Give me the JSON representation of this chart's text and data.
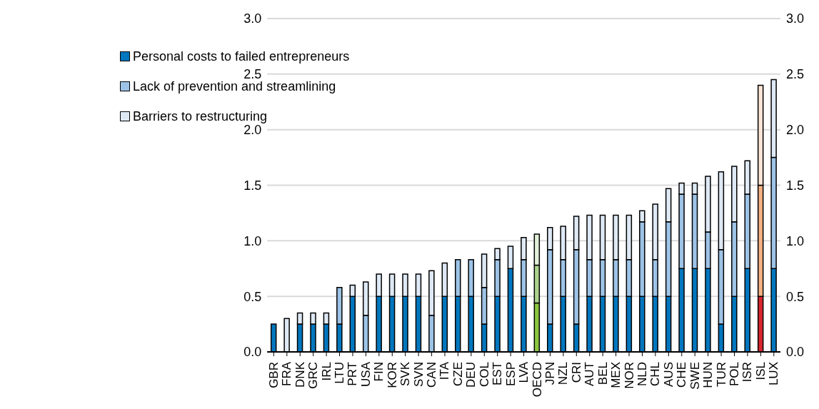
{
  "chart_data": {
    "type": "bar",
    "stacked": true,
    "categories": [
      "GBR",
      "FRA",
      "DNK",
      "GRC",
      "IRL",
      "LTU",
      "PRT",
      "USA",
      "FIN",
      "KOR",
      "SVK",
      "SVN",
      "CAN",
      "ITA",
      "CZE",
      "DEU",
      "COL",
      "EST",
      "ESP",
      "LVA",
      "OECD",
      "JPN",
      "NZL",
      "CRI",
      "AUT",
      "BEL",
      "MEX",
      "NOR",
      "NLD",
      "CHL",
      "AUS",
      "CHE",
      "SWE",
      "HUN",
      "TUR",
      "POL",
      "ISR",
      "ISL",
      "LUX"
    ],
    "series": [
      {
        "name": "Personal costs to failed entrepreneurs",
        "color": "#0077be",
        "colors": [
          "#0077be",
          "#0077be",
          "#0077be",
          "#0077be",
          "#0077be",
          "#0077be",
          "#0077be",
          "#0077be",
          "#0077be",
          "#0077be",
          "#0077be",
          "#0077be",
          "#0077be",
          "#0077be",
          "#0077be",
          "#0077be",
          "#0077be",
          "#0077be",
          "#0077be",
          "#0077be",
          "#8cc63f",
          "#0077be",
          "#0077be",
          "#0077be",
          "#0077be",
          "#0077be",
          "#0077be",
          "#0077be",
          "#0077be",
          "#0077be",
          "#0077be",
          "#0077be",
          "#0077be",
          "#0077be",
          "#0077be",
          "#0077be",
          "#0077be",
          "#d9272e",
          "#0077be"
        ],
        "values": [
          0.25,
          0,
          0.25,
          0.25,
          0.25,
          0.25,
          0.5,
          0,
          0.5,
          0.5,
          0.5,
          0.5,
          0,
          0.5,
          0.5,
          0.5,
          0.25,
          0.5,
          0.75,
          0.5,
          0.44,
          0.25,
          0.5,
          0.25,
          0.5,
          0.5,
          0.5,
          0.5,
          0.5,
          0.5,
          0.5,
          0.75,
          0.75,
          0.75,
          0.25,
          0.5,
          0.75,
          0.5,
          0.75
        ]
      },
      {
        "name": "Lack of prevention and streamlining",
        "color": "#9dc3e6",
        "colors": [
          "#9dc3e6",
          "#9dc3e6",
          "#9dc3e6",
          "#9dc3e6",
          "#9dc3e6",
          "#9dc3e6",
          "#9dc3e6",
          "#9dc3e6",
          "#9dc3e6",
          "#9dc3e6",
          "#9dc3e6",
          "#9dc3e6",
          "#9dc3e6",
          "#9dc3e6",
          "#9dc3e6",
          "#9dc3e6",
          "#9dc3e6",
          "#9dc3e6",
          "#9dc3e6",
          "#9dc3e6",
          "#acd38e",
          "#9dc3e6",
          "#9dc3e6",
          "#9dc3e6",
          "#9dc3e6",
          "#9dc3e6",
          "#9dc3e6",
          "#9dc3e6",
          "#9dc3e6",
          "#9dc3e6",
          "#9dc3e6",
          "#9dc3e6",
          "#9dc3e6",
          "#9dc3e6",
          "#9dc3e6",
          "#9dc3e6",
          "#9dc3e6",
          "#f4b183",
          "#9dc3e6"
        ],
        "values": [
          0,
          0,
          0,
          0,
          0,
          0.33,
          0,
          0.33,
          0,
          0,
          0,
          0,
          0.33,
          0,
          0.33,
          0.33,
          0.33,
          0.33,
          0,
          0.33,
          0.34,
          0.67,
          0.33,
          0.67,
          0.33,
          0.33,
          0.33,
          0.33,
          0.67,
          0.33,
          0.67,
          0.67,
          0.67,
          0.33,
          0.67,
          0.67,
          0.67,
          1.0,
          1.0
        ]
      },
      {
        "name": "Barriers to restructuring",
        "color": "#dee9f5",
        "colors": [
          "#dee9f5",
          "#dee9f5",
          "#dee9f5",
          "#dee9f5",
          "#dee9f5",
          "#dee9f5",
          "#dee9f5",
          "#dee9f5",
          "#dee9f5",
          "#dee9f5",
          "#dee9f5",
          "#dee9f5",
          "#dee9f5",
          "#dee9f5",
          "#dee9f5",
          "#dee9f5",
          "#dee9f5",
          "#dee9f5",
          "#dee9f5",
          "#dee9f5",
          "#e3f0d9",
          "#dee9f5",
          "#dee9f5",
          "#dee9f5",
          "#dee9f5",
          "#dee9f5",
          "#dee9f5",
          "#dee9f5",
          "#dee9f5",
          "#dee9f5",
          "#dee9f5",
          "#dee9f5",
          "#dee9f5",
          "#dee9f5",
          "#dee9f5",
          "#dee9f5",
          "#dee9f5",
          "#fbe5d6",
          "#dee9f5"
        ],
        "values": [
          0,
          0.3,
          0.1,
          0.1,
          0.1,
          0,
          0.1,
          0.3,
          0.2,
          0.2,
          0.2,
          0.2,
          0.4,
          0.3,
          0,
          0,
          0.3,
          0.1,
          0.2,
          0.2,
          0.28,
          0.2,
          0.3,
          0.3,
          0.4,
          0.4,
          0.4,
          0.4,
          0.1,
          0.5,
          0.3,
          0.1,
          0.1,
          0.5,
          0.7,
          0.5,
          0.3,
          0.9,
          0.7
        ]
      }
    ],
    "ylim": [
      0,
      3
    ],
    "yticks": [
      {
        "value": 0,
        "label": "0.0"
      },
      {
        "value": 0.5,
        "label": "0.5"
      },
      {
        "value": 1,
        "label": "1.0"
      },
      {
        "value": 1.5,
        "label": "1.5"
      },
      {
        "value": 2,
        "label": "2.0"
      },
      {
        "value": 2.5,
        "label": "2.5"
      },
      {
        "value": 3,
        "label": "3.0"
      }
    ],
    "y2lim": [
      0,
      3
    ],
    "y2ticks": [
      {
        "value": 0,
        "label": "0.0"
      },
      {
        "value": 0.5,
        "label": "0.5"
      },
      {
        "value": 1,
        "label": "1.0"
      },
      {
        "value": 1.5,
        "label": "1.5"
      },
      {
        "value": 2,
        "label": "2.0"
      },
      {
        "value": 2.5,
        "label": "2.5"
      },
      {
        "value": 3,
        "label": "3.0"
      }
    ],
    "grid": "y",
    "legend": "top left"
  }
}
